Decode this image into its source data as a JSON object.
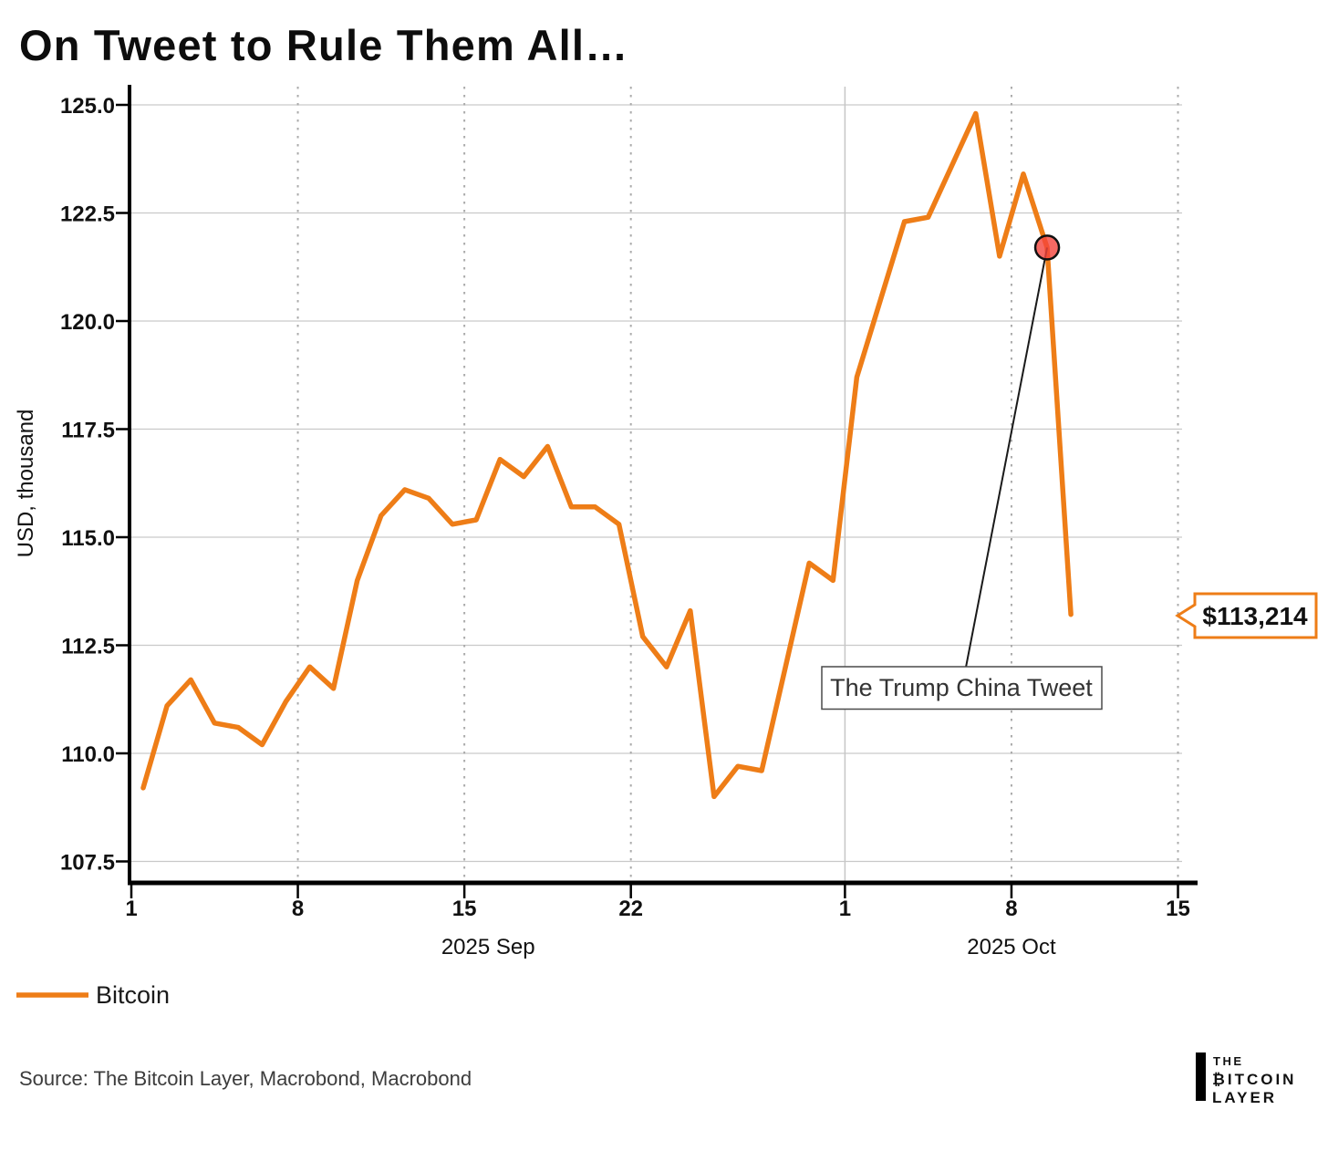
{
  "title": "On Tweet to Rule Them All…",
  "source": "Source: The Bitcoin Layer, Macrobond, Macrobond",
  "legend": [
    {
      "label": "Bitcoin",
      "color": "#EE7D17"
    }
  ],
  "logo": {
    "line1": "THE",
    "line2": "₿ITCOIN",
    "line3": "LAYER"
  },
  "colors": {
    "line": "#EE7D17",
    "marker_fill": "#f4433c",
    "marker_stroke": "#111111",
    "callout": "#EE7D17",
    "grid": "#c9c9c9"
  },
  "chart_data": {
    "type": "line",
    "title": "On Tweet to Rule Them All…",
    "xlabel": "",
    "ylabel": "USD, thousand",
    "ylim": [
      107.5,
      125.0
    ],
    "grid": true,
    "legend_position": "bottom-left",
    "y_tick_values": [
      125.0,
      122.5,
      120.0,
      117.5,
      115.0,
      112.5,
      110.0,
      107.5
    ],
    "y_tick_labels": [
      "125.0",
      "122.5",
      "120.0",
      "117.5",
      "115.0",
      "112.5",
      "110.0",
      "107.5"
    ],
    "x_ticks": [
      {
        "label": "1",
        "day": 0
      },
      {
        "label": "8",
        "day": 7
      },
      {
        "label": "15",
        "day": 14
      },
      {
        "label": "22",
        "day": 21
      },
      {
        "label": "1",
        "day": 30
      },
      {
        "label": "8",
        "day": 37
      },
      {
        "label": "15",
        "day": 44
      }
    ],
    "x_gridlines_dotted_days": [
      7,
      14,
      21,
      37,
      44
    ],
    "x_gridline_solid_day": 30,
    "month_labels": [
      {
        "label": "2025 Sep",
        "mid_day": 15
      },
      {
        "label": "2025 Oct",
        "mid_day": 37
      }
    ],
    "series": [
      {
        "name": "Bitcoin",
        "color": "#EE7D17",
        "dates": [
          "Sep 1",
          "Sep 2",
          "Sep 3",
          "Sep 4",
          "Sep 5",
          "Sep 6",
          "Sep 7",
          "Sep 8",
          "Sep 9",
          "Sep 10",
          "Sep 11",
          "Sep 12",
          "Sep 13",
          "Sep 14",
          "Sep 15",
          "Sep 16",
          "Sep 17",
          "Sep 18",
          "Sep 19",
          "Sep 20",
          "Sep 21",
          "Sep 22",
          "Sep 23",
          "Sep 24",
          "Sep 25",
          "Sep 26",
          "Sep 27",
          "Sep 28",
          "Sep 29",
          "Sep 30",
          "Oct 1",
          "Oct 2",
          "Oct 3",
          "Oct 4",
          "Oct 5",
          "Oct 6",
          "Oct 7",
          "Oct 8",
          "Oct 9",
          "Oct 10"
        ],
        "values": [
          109.2,
          111.1,
          111.7,
          110.7,
          110.6,
          110.2,
          111.2,
          112.0,
          111.5,
          114.0,
          115.5,
          116.1,
          115.9,
          115.3,
          115.4,
          116.8,
          116.4,
          117.1,
          115.7,
          115.7,
          115.3,
          112.7,
          112.0,
          113.3,
          109.0,
          109.7,
          109.6,
          112.0,
          114.4,
          114.0,
          118.7,
          120.5,
          122.3,
          122.4,
          123.6,
          124.8,
          121.5,
          123.4,
          121.7,
          113.214
        ]
      }
    ],
    "annotation": {
      "label": "The Trump China Tweet",
      "date": "Oct 9",
      "day_index": 38,
      "value": 121.7
    },
    "price_callout": {
      "label": "$113,214",
      "value": 113.214
    }
  }
}
